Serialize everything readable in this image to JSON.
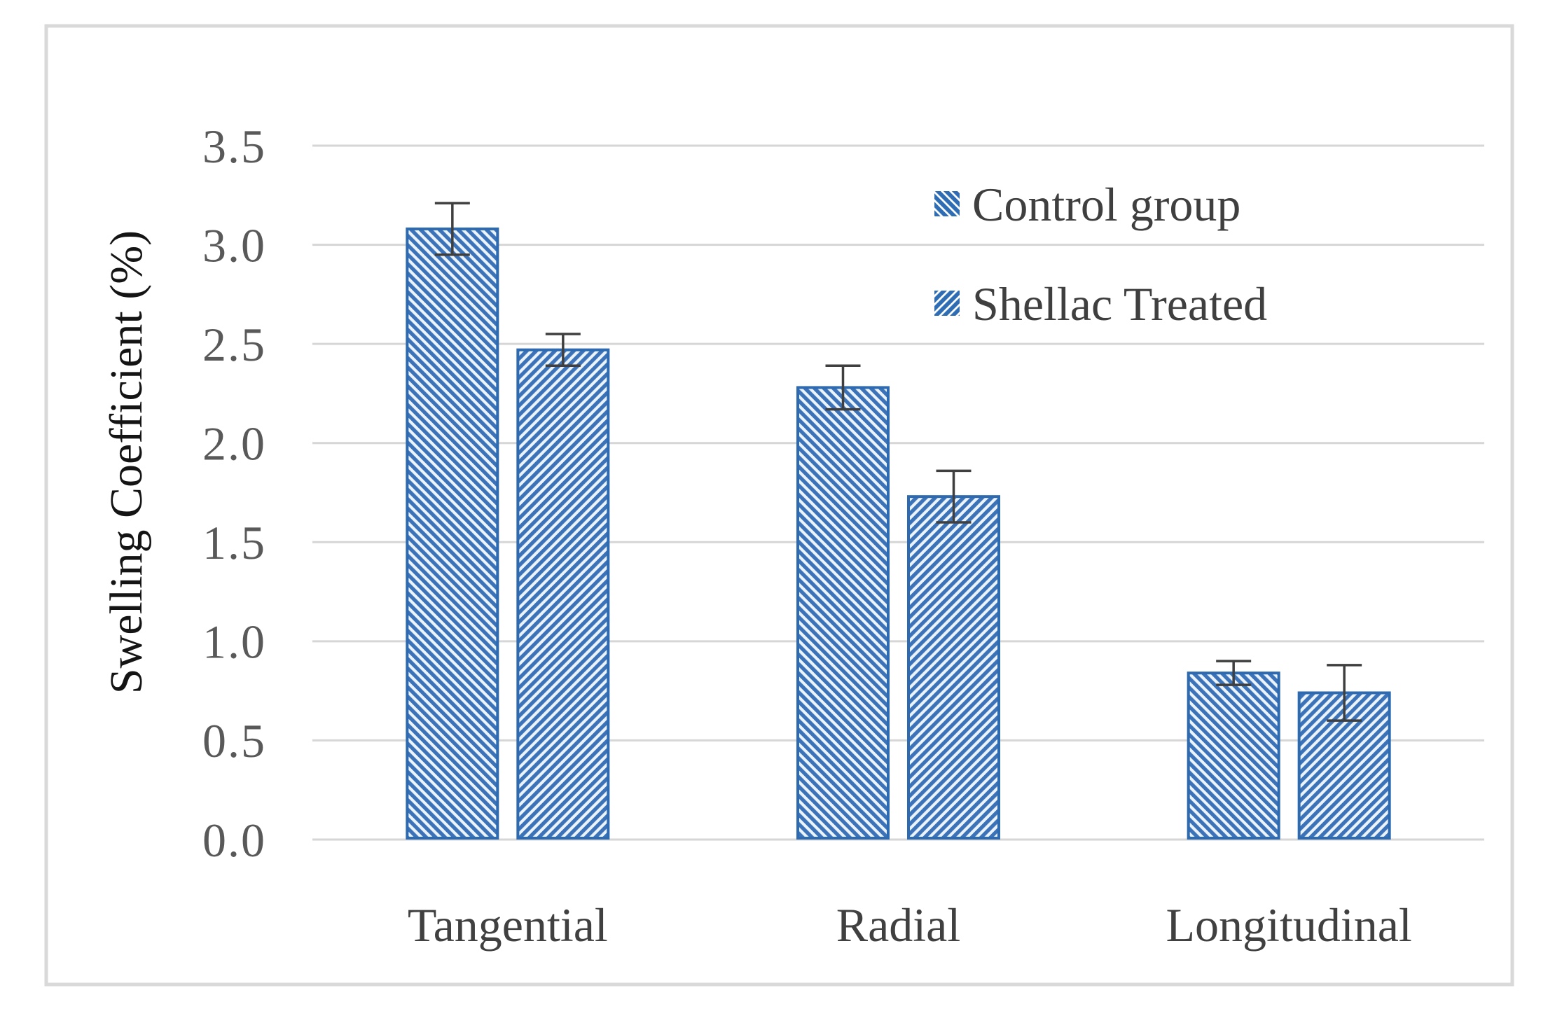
{
  "chart_data": {
    "type": "bar",
    "title": "",
    "xlabel": "",
    "ylabel": "Swelling Coefficient (%)",
    "categories": [
      "Tangential",
      "Radial",
      "Longitudinal"
    ],
    "series": [
      {
        "name": "Control group",
        "values": [
          3.08,
          2.28,
          0.84
        ],
        "errors": [
          0.13,
          0.11,
          0.06
        ],
        "hatch": "backslash"
      },
      {
        "name": "Shellac Treated",
        "values": [
          2.47,
          1.73,
          0.74
        ],
        "errors": [
          0.08,
          0.13,
          0.14
        ],
        "hatch": "slash"
      }
    ],
    "ylim": [
      0,
      3.5
    ],
    "ytick_step": 0.5,
    "ytick_labels": [
      "0.0",
      "0.5",
      "1.0",
      "1.5",
      "2.0",
      "2.5",
      "3.0",
      "3.5"
    ],
    "grid": true,
    "legend_position": "top-right",
    "error_bars": true
  },
  "colors": {
    "background": "#FFFFFF",
    "frame_border": "#D9D9D9",
    "gridline": "#D6D6D6",
    "bar_stripe": "#3B72B8",
    "bar_border": "#2E6AB0",
    "bar_pattern_bg": "#EBF3FB",
    "legend_marker_blue": "#2E6DB4",
    "legend_marker_stripe": "#FFFFFF",
    "error_bar": "#3F3F3F",
    "tick_label": "#595959",
    "category_label": "#404040",
    "legend_text": "#3F3F3F",
    "axis_title": "#141414"
  }
}
